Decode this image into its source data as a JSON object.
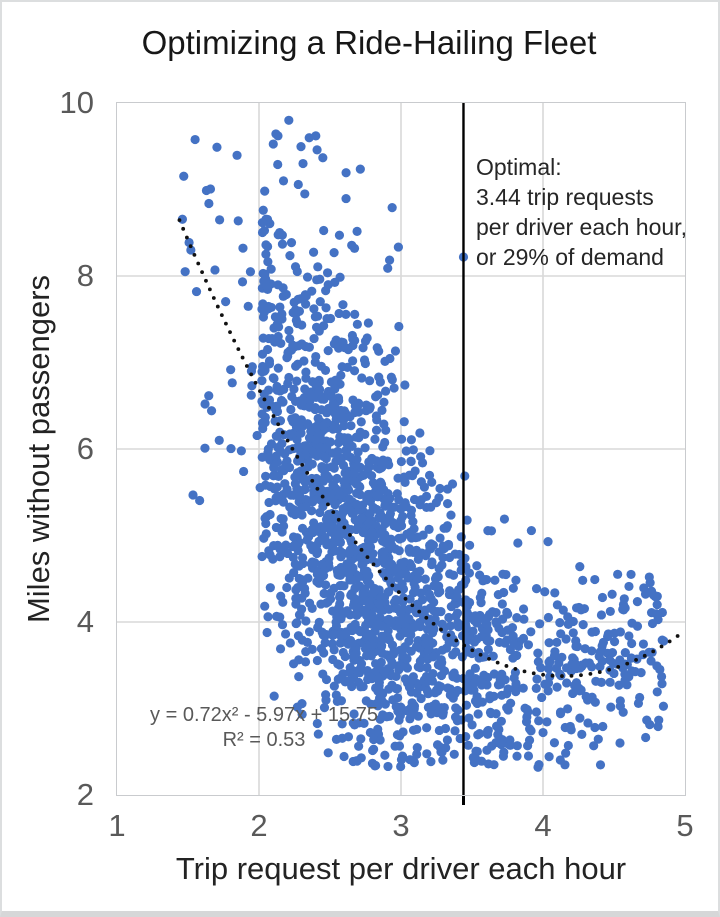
{
  "title": "Optimizing a Ride-Hailing Fleet",
  "axes": {
    "x": {
      "label": "Trip request per driver each hour",
      "tick_labels": [
        "1",
        "2",
        "3",
        "4",
        "5"
      ]
    },
    "y": {
      "label": "Miles without passengers",
      "tick_labels": [
        "10",
        "8",
        "6",
        "4",
        "2"
      ]
    }
  },
  "annotation": {
    "lines": [
      "Optimal:",
      "3.44 trip requests",
      "per driver each hour,",
      "or 29% of demand"
    ]
  },
  "equation": {
    "line1": "y = 0.72x² - 5.97x + 15.75",
    "line2": "R² = 0.53"
  },
  "colors": {
    "dot": "#4472C4",
    "grid": "#D9D9D9",
    "plot_border": "#C9CBCE",
    "trend": "#111111",
    "optimal_line": "#000000",
    "tick_text": "#595959",
    "title_text": "#171717",
    "annotation_text": "#262626",
    "equation_text": "#595959"
  },
  "chart_data": {
    "type": "scatter",
    "title": "Optimizing a Ride-Hailing Fleet",
    "xlabel": "Trip request per driver each hour",
    "ylabel": "Miles without passengers",
    "xlim": [
      1,
      5
    ],
    "ylim": [
      2,
      10
    ],
    "x_ticks": [
      1,
      2,
      3,
      4,
      5
    ],
    "y_ticks": [
      2,
      4,
      6,
      8,
      10
    ],
    "grid": true,
    "point_color": "#4472C4",
    "point_radius_px": 4.6,
    "points": {
      "generated": true,
      "seed": 20240611,
      "count": 2000,
      "x_mixture": [
        {
          "type": "normal",
          "weight": 0.6,
          "mean": 2.62,
          "sd": 0.36,
          "wall": true
        },
        {
          "type": "normal",
          "weight": 0.25,
          "mean": 3.05,
          "sd": 0.5,
          "wall": true
        },
        {
          "type": "uniform",
          "weight": 0.134,
          "min": 3.45,
          "max": 4.85,
          "wall": false
        },
        {
          "type": "uniform",
          "weight": 0.016,
          "min": 1.45,
          "max": 2.05,
          "wall": false
        }
      ],
      "x_wall": 2.02,
      "x_clip": [
        1.42,
        4.88
      ],
      "noise": {
        "base": 1.3,
        "slope": -0.33,
        "min": 0.5,
        "top_tail_prob": 0.045,
        "top_tail_x_max": 3.05,
        "top_tail_max": 3.3,
        "y_clip": [
          2.32,
          9.8
        ]
      }
    },
    "notable_points": [
      [
        2.21,
        9.8
      ],
      [
        2.4,
        9.62
      ],
      [
        2.31,
        9.3
      ],
      [
        2.03,
        8.76
      ],
      [
        3.44,
        8.22
      ],
      [
        1.52,
        8.3
      ],
      [
        1.48,
        8.05
      ],
      [
        1.56,
        7.82
      ],
      [
        1.69,
        8.07
      ],
      [
        1.62,
        6.52
      ],
      [
        4.56,
        3.5
      ],
      [
        4.85,
        3.78
      ],
      [
        4.62,
        4.55
      ],
      [
        1.72,
        6.1
      ]
    ],
    "trendline": {
      "style": "dotted",
      "equation": "y = 0.72x² - 5.97x + 15.75",
      "a": 0.72,
      "b": -5.97,
      "c": 15.75,
      "r_squared": 0.53,
      "x_start": 1.44,
      "x_end": 4.98
    },
    "optimal_line": {
      "x": 3.44,
      "label": "Optimal: 3.44 trip requests per driver each hour, or 29% of demand",
      "percent_of_demand": 29
    }
  }
}
